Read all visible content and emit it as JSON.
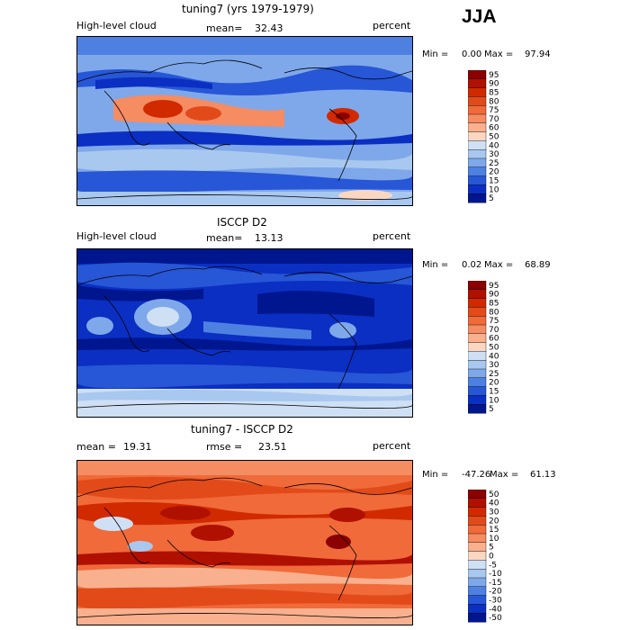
{
  "season": "JJA",
  "panels": [
    {
      "title": "tuning7 (yrs 1979-1979)",
      "field": "High-level cloud",
      "stat_label": "mean=",
      "stat_value": "32.43",
      "units": "percent",
      "min_label": "Min =",
      "min_value": "0.00",
      "max_label": "Max =",
      "max_value": "97.94",
      "levels": [
        "95",
        "90",
        "85",
        "80",
        "75",
        "70",
        "60",
        "50",
        "40",
        "30",
        "25",
        "20",
        "15",
        "10",
        "5"
      ]
    },
    {
      "title": "ISCCP D2",
      "field": "High-level cloud",
      "stat_label": "mean=",
      "stat_value": "13.13",
      "units": "percent",
      "min_label": "Min =",
      "min_value": "0.02",
      "max_label": "Max =",
      "max_value": "68.89",
      "levels": [
        "95",
        "90",
        "85",
        "80",
        "75",
        "70",
        "60",
        "50",
        "40",
        "30",
        "25",
        "20",
        "15",
        "10",
        "5"
      ]
    },
    {
      "title": "tuning7 - ISCCP D2",
      "mean_label": "mean =",
      "mean_value": "19.31",
      "rmse_label": "rmse =",
      "rmse_value": "23.51",
      "units": "percent",
      "min_label": "Min =",
      "min_value": "-47.26",
      "max_label": "Max =",
      "max_value": "61.13",
      "levels": [
        "50",
        "40",
        "30",
        "20",
        "15",
        "10",
        "5",
        "0",
        "-5",
        "-10",
        "-15",
        "-20",
        "-30",
        "-40",
        "-50"
      ]
    }
  ],
  "colors": {
    "palette": [
      "#8b0000",
      "#b01000",
      "#d12a00",
      "#e34a1a",
      "#f06a3a",
      "#f58c62",
      "#f9b08e",
      "#fbd7c2",
      "#cfe0f4",
      "#a9c8ef",
      "#7fa8ea",
      "#4e80e2",
      "#2756d6",
      "#0a2fc2",
      "#00168f"
    ]
  },
  "chart_data": [
    {
      "type": "heatmap",
      "title": "tuning7 (yrs 1979-1979)",
      "variable": "High-level cloud",
      "units": "percent",
      "mean": 32.43,
      "min": 0.0,
      "max": 97.94,
      "contour_levels": [
        5,
        10,
        15,
        20,
        25,
        30,
        40,
        50,
        60,
        70,
        75,
        80,
        85,
        90,
        95
      ]
    },
    {
      "type": "heatmap",
      "title": "ISCCP D2",
      "variable": "High-level cloud",
      "units": "percent",
      "mean": 13.13,
      "min": 0.02,
      "max": 68.89,
      "contour_levels": [
        5,
        10,
        15,
        20,
        25,
        30,
        40,
        50,
        60,
        70,
        75,
        80,
        85,
        90,
        95
      ]
    },
    {
      "type": "heatmap",
      "title": "tuning7 - ISCCP D2",
      "units": "percent",
      "mean": 19.31,
      "rmse": 23.51,
      "min": -47.26,
      "max": 61.13,
      "contour_levels": [
        -50,
        -40,
        -30,
        -20,
        -15,
        -10,
        -5,
        0,
        5,
        10,
        15,
        20,
        30,
        40,
        50
      ]
    }
  ]
}
